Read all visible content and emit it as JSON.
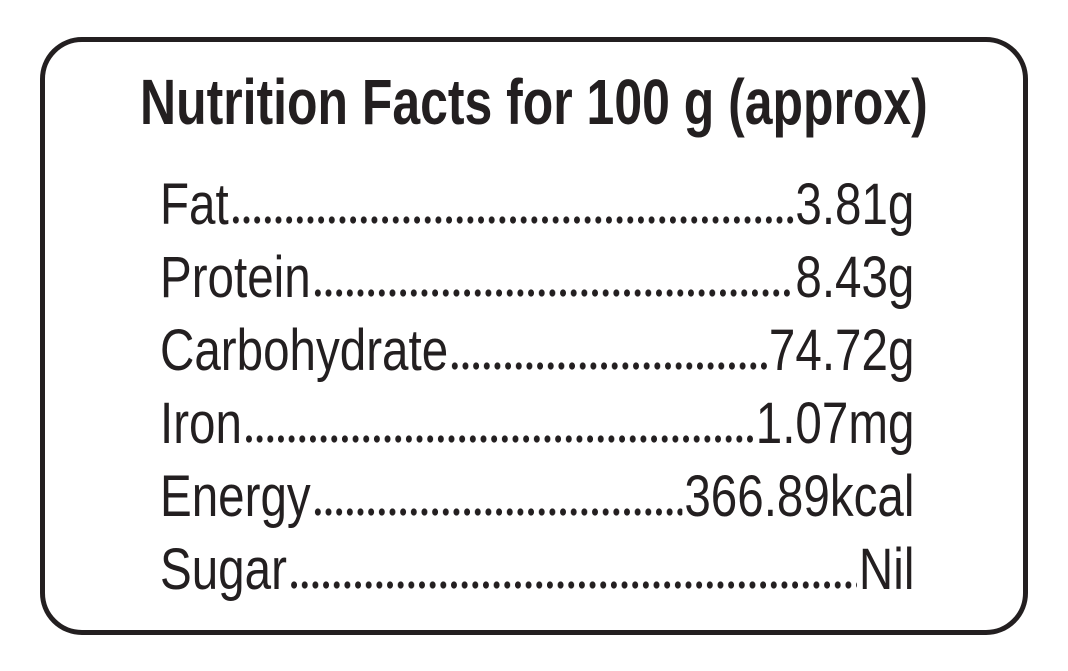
{
  "title": "Nutrition Facts for 100 g (approx)",
  "rows": [
    {
      "label": "Fat",
      "value": "3.81g"
    },
    {
      "label": "Protein",
      "value": "8.43g"
    },
    {
      "label": "Carbohydrate",
      "value": "74.72g"
    },
    {
      "label": "Iron",
      "value": "1.07mg"
    },
    {
      "label": "Energy",
      "value": "366.89kcal"
    },
    {
      "label": "Sugar",
      "value": "Nil"
    }
  ]
}
